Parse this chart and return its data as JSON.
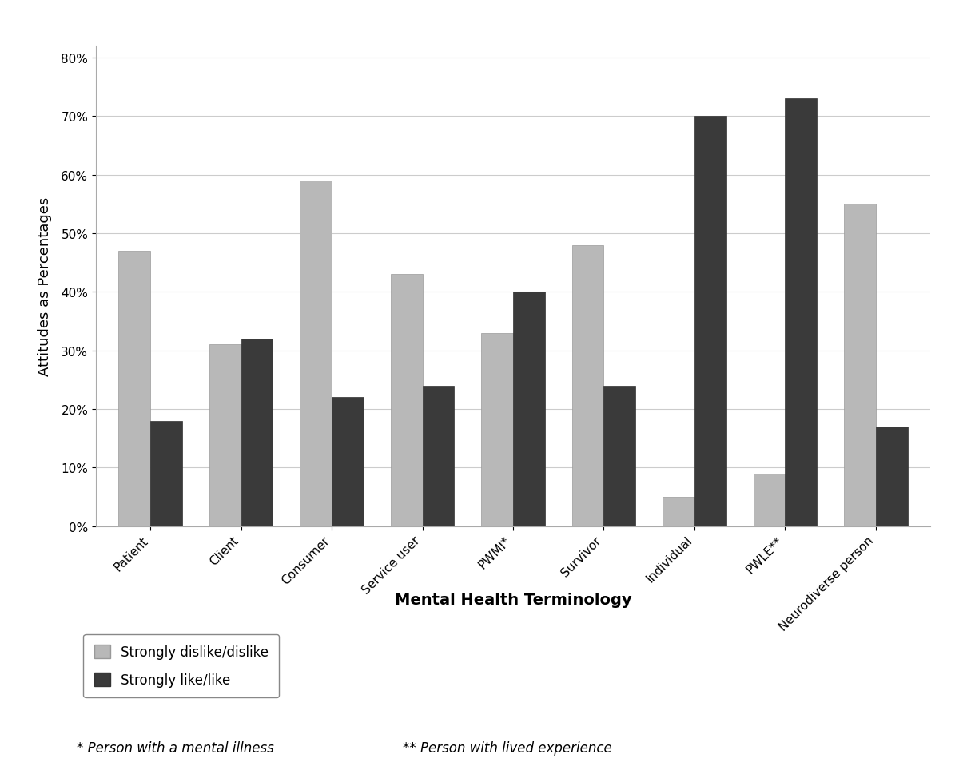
{
  "categories": [
    "Patient",
    "Client",
    "Consumer",
    "Service user",
    "PWMI*",
    "Survivor",
    "Individual",
    "PWLE**",
    "Neurodiverse person"
  ],
  "dislike_values": [
    47,
    31,
    59,
    43,
    33,
    48,
    5,
    9,
    55
  ],
  "like_values": [
    18,
    32,
    22,
    24,
    40,
    24,
    70,
    73,
    17
  ],
  "dislike_color": "#b8b8b8",
  "like_color": "#3a3a3a",
  "ylabel": "Attitudes as Percentages",
  "xlabel": "Mental Health Terminology",
  "ytick_labels": [
    "0%",
    "10%",
    "20%",
    "30%",
    "40%",
    "50%",
    "60%",
    "70%",
    "80%"
  ],
  "ytick_values": [
    0,
    10,
    20,
    30,
    40,
    50,
    60,
    70,
    80
  ],
  "ylim": [
    0,
    82
  ],
  "legend_dislike": "Strongly dislike/dislike",
  "legend_like": "Strongly like/like",
  "footnote1": "* Person with a mental illness",
  "footnote2": "** Person with lived experience",
  "bar_width": 0.35,
  "axis_label_fontsize": 13,
  "tick_fontsize": 11,
  "legend_fontsize": 12,
  "footnote_fontsize": 12,
  "background_color": "#ffffff",
  "grid_color": "#cccccc",
  "xlabel_fontsize": 14
}
